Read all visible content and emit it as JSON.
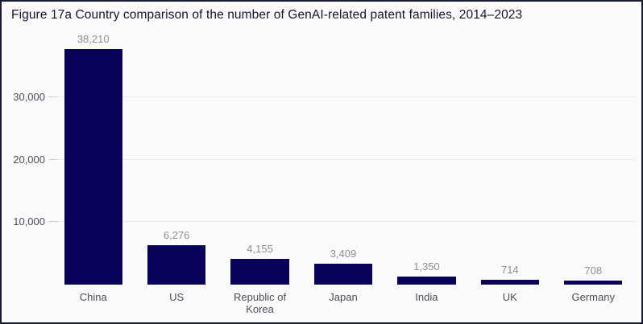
{
  "title": "Figure 17a Country comparison of the number of GenAI-related patent families, 2014–2023",
  "chart_data": {
    "type": "bar",
    "title": "Figure 17a Country comparison of the number of GenAI-related patent families, 2014–2023",
    "categories": [
      "China",
      "US",
      "Republic of Korea",
      "Japan",
      "India",
      "UK",
      "Germany"
    ],
    "values": [
      38210,
      6276,
      4155,
      3409,
      1350,
      714,
      708
    ],
    "value_labels": [
      "38,210",
      "6,276",
      "4,155",
      "3,409",
      "1,350",
      "714",
      "708"
    ],
    "xlabel": "",
    "ylabel": "",
    "y_ticks": [
      10000,
      20000,
      30000
    ],
    "y_tick_labels": [
      "10,000",
      "20,000",
      "30,000"
    ],
    "ylim": [
      0,
      40700
    ],
    "grid": "horizontal",
    "legend": "none",
    "bar_color": "#08025a"
  },
  "colors": {
    "background": "#fafafa",
    "frame_border": "#1a1a2e",
    "bar": "#08025a",
    "gridline": "#ececec",
    "tick_dash": "#cccccc",
    "title_text": "#14142e",
    "axis_text": "#4c4c5c",
    "value_text": "#8e8e8e"
  }
}
